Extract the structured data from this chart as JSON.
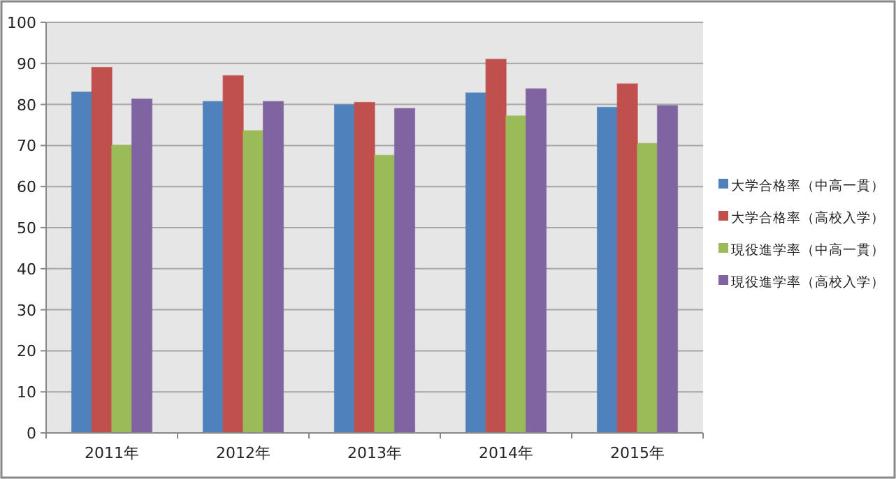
{
  "chart_data": {
    "type": "bar",
    "categories": [
      "2011年",
      "2012年",
      "2013年",
      "2014年",
      "2015年"
    ],
    "series": [
      {
        "name": "大学合格率（中高一貫）",
        "color": "#4f81bd",
        "values": [
          83,
          80.7,
          79.9,
          82.8,
          79.3
        ]
      },
      {
        "name": "大学合格率（高校入学）",
        "color": "#c0504d",
        "values": [
          89,
          87,
          80.5,
          91,
          85
        ]
      },
      {
        "name": "現役進学率（中高一貫）",
        "color": "#9bbb59",
        "values": [
          70,
          73.6,
          67.6,
          77.2,
          70.5
        ]
      },
      {
        "name": "現役進学率（高校入学）",
        "color": "#8064a2",
        "values": [
          81.3,
          80.7,
          79,
          83.8,
          79.7
        ]
      }
    ],
    "ylim": [
      0,
      100
    ],
    "yticks": [
      0,
      10,
      20,
      30,
      40,
      50,
      60,
      70,
      80,
      90,
      100
    ],
    "grid": "y",
    "legend": "right"
  }
}
